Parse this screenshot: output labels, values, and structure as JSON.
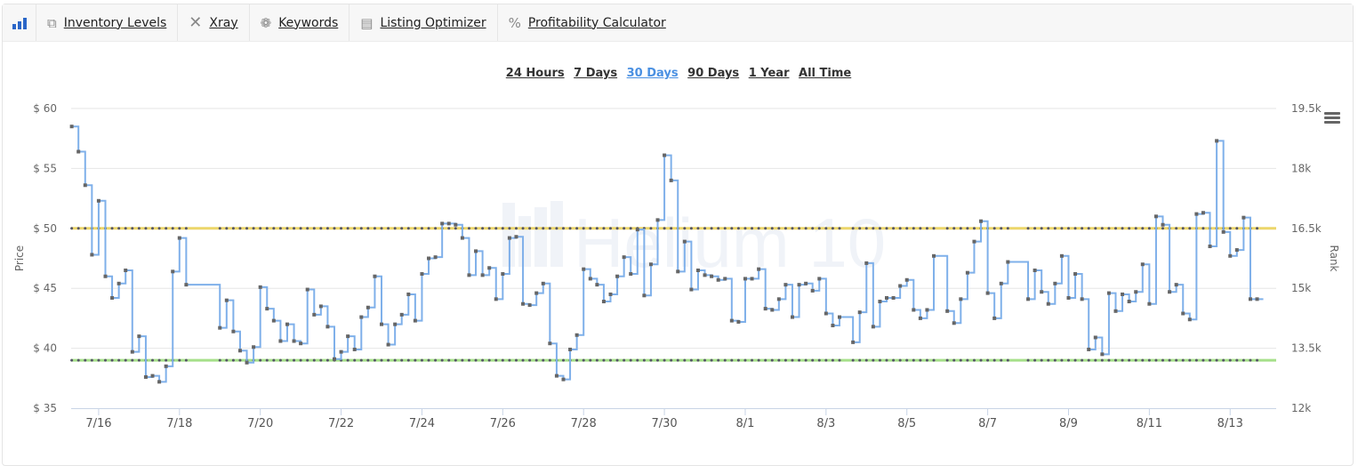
{
  "toolbar": {
    "items": [
      {
        "label": "Inventory Levels",
        "icon": "copy-icon"
      },
      {
        "label": "Xray",
        "icon": "x-icon"
      },
      {
        "label": "Keywords",
        "icon": "brain-icon"
      },
      {
        "label": "Listing Optimizer",
        "icon": "document-icon"
      },
      {
        "label": "Profitability Calculator",
        "icon": "percent-icon"
      }
    ],
    "logo_icon": "bar-chart-icon"
  },
  "ranges": [
    "24 Hours",
    "7 Days",
    "30 Days",
    "90 Days",
    "1 Year",
    "All Time"
  ],
  "active_range": "30 Days",
  "watermark": "Helium 10",
  "colors": {
    "price_line": "#7fb0ea",
    "upper_ref": "#ecd66a",
    "lower_ref": "#a6e08a",
    "marker": "#666666",
    "active_range": "#4a90e2"
  },
  "chart_data": {
    "type": "line",
    "step": true,
    "ylabel": "Price",
    "y2label": "Rank",
    "ylim": [
      35,
      60
    ],
    "y2lim": [
      12000,
      19500
    ],
    "yticks": [
      "$ 60",
      "$ 55",
      "$ 50",
      "$ 45",
      "$ 40",
      "$ 35"
    ],
    "y2ticks": [
      "19.5k",
      "18k",
      "16.5k",
      "15k",
      "13.5k",
      "12k"
    ],
    "xticks": [
      "7/16",
      "7/18",
      "7/20",
      "7/22",
      "7/24",
      "7/26",
      "7/28",
      "7/30",
      "8/1",
      "8/3",
      "8/5",
      "8/7",
      "8/9",
      "8/11",
      "8/13"
    ],
    "xlim": [
      "7/15 07:40",
      "8/14 03:20"
    ],
    "grid": true,
    "reference_lines": [
      {
        "value": 50,
        "color": "#ecd66a"
      },
      {
        "value": 39,
        "color": "#a6e08a"
      }
    ],
    "series": [
      {
        "points": [
          [
            "7/15 08:00",
            58.5
          ],
          [
            "7/15 12:00",
            56.4
          ],
          [
            "7/15 16:00",
            53.6
          ],
          [
            "7/15 20:00",
            47.8
          ],
          [
            "7/16 00:00",
            52.3
          ],
          [
            "7/16 04:00",
            46.0
          ],
          [
            "7/16 08:00",
            44.2
          ],
          [
            "7/16 12:00",
            45.4
          ],
          [
            "7/16 16:00",
            46.5
          ],
          [
            "7/16 20:00",
            39.7
          ],
          [
            "7/17 00:00",
            41.0
          ],
          [
            "7/17 04:00",
            37.6
          ],
          [
            "7/17 08:00",
            37.7
          ],
          [
            "7/17 12:00",
            37.2
          ],
          [
            "7/17 16:00",
            38.5
          ],
          [
            "7/17 20:00",
            46.4
          ],
          [
            "7/18 00:00",
            49.2
          ],
          [
            "7/18 04:00",
            45.3
          ],
          [
            "7/19 00:00",
            41.7
          ],
          [
            "7/19 04:00",
            44.0
          ],
          [
            "7/19 08:00",
            41.4
          ],
          [
            "7/19 12:00",
            39.8
          ],
          [
            "7/19 16:00",
            38.8
          ],
          [
            "7/19 20:00",
            40.1
          ],
          [
            "7/20 00:00",
            45.1
          ],
          [
            "7/20 04:00",
            43.3
          ],
          [
            "7/20 08:00",
            42.3
          ],
          [
            "7/20 12:00",
            40.6
          ],
          [
            "7/20 16:00",
            42.0
          ],
          [
            "7/20 20:00",
            40.6
          ],
          [
            "7/21 00:00",
            40.4
          ],
          [
            "7/21 04:00",
            44.9
          ],
          [
            "7/21 08:00",
            42.8
          ],
          [
            "7/21 12:00",
            43.5
          ],
          [
            "7/21 16:00",
            41.8
          ],
          [
            "7/21 20:00",
            39.1
          ],
          [
            "7/22 00:00",
            39.7
          ],
          [
            "7/22 04:00",
            41.0
          ],
          [
            "7/22 08:00",
            39.9
          ],
          [
            "7/22 12:00",
            42.6
          ],
          [
            "7/22 16:00",
            43.4
          ],
          [
            "7/22 20:00",
            46.0
          ],
          [
            "7/23 00:00",
            42.0
          ],
          [
            "7/23 04:00",
            40.3
          ],
          [
            "7/23 08:00",
            42.0
          ],
          [
            "7/23 12:00",
            42.8
          ],
          [
            "7/23 16:00",
            44.5
          ],
          [
            "7/23 20:00",
            42.3
          ],
          [
            "7/24 00:00",
            46.2
          ],
          [
            "7/24 04:00",
            47.5
          ],
          [
            "7/24 08:00",
            47.6
          ],
          [
            "7/24 12:00",
            50.4
          ],
          [
            "7/24 16:00",
            50.4
          ],
          [
            "7/24 20:00",
            50.3
          ],
          [
            "7/25 00:00",
            49.2
          ],
          [
            "7/25 04:00",
            46.1
          ],
          [
            "7/25 08:00",
            48.1
          ],
          [
            "7/25 12:00",
            46.1
          ],
          [
            "7/25 16:00",
            46.7
          ],
          [
            "7/25 20:00",
            44.1
          ],
          [
            "7/26 00:00",
            46.2
          ],
          [
            "7/26 04:00",
            49.2
          ],
          [
            "7/26 08:00",
            49.3
          ],
          [
            "7/26 12:00",
            43.7
          ],
          [
            "7/26 16:00",
            43.6
          ],
          [
            "7/26 20:00",
            44.6
          ],
          [
            "7/27 00:00",
            45.4
          ],
          [
            "7/27 04:00",
            40.4
          ],
          [
            "7/27 08:00",
            37.7
          ],
          [
            "7/27 12:00",
            37.4
          ],
          [
            "7/27 16:00",
            39.9
          ],
          [
            "7/27 20:00",
            41.1
          ],
          [
            "7/28 00:00",
            46.6
          ],
          [
            "7/28 04:00",
            45.8
          ],
          [
            "7/28 08:00",
            45.3
          ],
          [
            "7/28 12:00",
            43.9
          ],
          [
            "7/28 16:00",
            44.5
          ],
          [
            "7/28 20:00",
            46.0
          ],
          [
            "7/29 00:00",
            47.6
          ],
          [
            "7/29 04:00",
            46.2
          ],
          [
            "7/29 08:00",
            49.9
          ],
          [
            "7/29 12:00",
            44.4
          ],
          [
            "7/29 16:00",
            47.0
          ],
          [
            "7/29 20:00",
            50.7
          ],
          [
            "7/30 00:00",
            56.1
          ],
          [
            "7/30 04:00",
            54.0
          ],
          [
            "7/30 08:00",
            46.4
          ],
          [
            "7/30 12:00",
            48.9
          ],
          [
            "7/30 16:00",
            44.9
          ],
          [
            "7/30 20:00",
            46.5
          ],
          [
            "7/31 00:00",
            46.1
          ],
          [
            "7/31 04:00",
            46.0
          ],
          [
            "7/31 08:00",
            45.7
          ],
          [
            "7/31 12:00",
            45.8
          ],
          [
            "7/31 16:00",
            42.3
          ],
          [
            "7/31 20:00",
            42.2
          ],
          [
            "8/1 00:00",
            45.8
          ],
          [
            "8/1 04:00",
            45.8
          ],
          [
            "8/1 08:00",
            46.6
          ],
          [
            "8/1 12:00",
            43.3
          ],
          [
            "8/1 16:00",
            43.2
          ],
          [
            "8/1 20:00",
            44.1
          ],
          [
            "8/2 00:00",
            45.3
          ],
          [
            "8/2 04:00",
            42.6
          ],
          [
            "8/2 08:00",
            45.3
          ],
          [
            "8/2 12:00",
            45.4
          ],
          [
            "8/2 16:00",
            44.8
          ],
          [
            "8/2 20:00",
            45.8
          ],
          [
            "8/3 00:00",
            42.9
          ],
          [
            "8/3 04:00",
            41.9
          ],
          [
            "8/3 08:00",
            42.6
          ],
          [
            "8/3 16:00",
            40.5
          ],
          [
            "8/3 20:00",
            43.0
          ],
          [
            "8/4 00:00",
            47.1
          ],
          [
            "8/4 04:00",
            41.8
          ],
          [
            "8/4 08:00",
            43.9
          ],
          [
            "8/4 12:00",
            44.2
          ],
          [
            "8/4 16:00",
            44.2
          ],
          [
            "8/4 20:00",
            45.2
          ],
          [
            "8/5 00:00",
            45.7
          ],
          [
            "8/5 04:00",
            43.2
          ],
          [
            "8/5 08:00",
            42.5
          ],
          [
            "8/5 12:00",
            43.2
          ],
          [
            "8/5 16:00",
            47.7
          ],
          [
            "8/6 00:00",
            43.1
          ],
          [
            "8/6 04:00",
            42.1
          ],
          [
            "8/6 08:00",
            44.1
          ],
          [
            "8/6 12:00",
            46.3
          ],
          [
            "8/6 16:00",
            48.9
          ],
          [
            "8/6 20:00",
            50.6
          ],
          [
            "8/7 00:00",
            44.6
          ],
          [
            "8/7 04:00",
            42.5
          ],
          [
            "8/7 08:00",
            45.4
          ],
          [
            "8/7 12:00",
            47.2
          ],
          [
            "8/8 00:00",
            44.1
          ],
          [
            "8/8 04:00",
            46.5
          ],
          [
            "8/8 08:00",
            44.7
          ],
          [
            "8/8 12:00",
            43.7
          ],
          [
            "8/8 16:00",
            45.4
          ],
          [
            "8/8 20:00",
            47.7
          ],
          [
            "8/9 00:00",
            44.2
          ],
          [
            "8/9 04:00",
            46.2
          ],
          [
            "8/9 08:00",
            44.1
          ],
          [
            "8/9 12:00",
            39.9
          ],
          [
            "8/9 16:00",
            40.9
          ],
          [
            "8/9 20:00",
            39.5
          ],
          [
            "8/10 00:00",
            44.6
          ],
          [
            "8/10 04:00",
            43.1
          ],
          [
            "8/10 08:00",
            44.5
          ],
          [
            "8/10 12:00",
            43.9
          ],
          [
            "8/10 16:00",
            44.7
          ],
          [
            "8/10 20:00",
            47.0
          ],
          [
            "8/11 00:00",
            43.7
          ],
          [
            "8/11 04:00",
            51.0
          ],
          [
            "8/11 08:00",
            50.3
          ],
          [
            "8/11 12:00",
            44.7
          ],
          [
            "8/11 16:00",
            45.3
          ],
          [
            "8/11 20:00",
            42.9
          ],
          [
            "8/12 00:00",
            42.4
          ],
          [
            "8/12 04:00",
            51.2
          ],
          [
            "8/12 08:00",
            51.3
          ],
          [
            "8/12 12:00",
            48.5
          ],
          [
            "8/12 16:00",
            57.3
          ],
          [
            "8/12 20:00",
            49.7
          ],
          [
            "8/13 00:00",
            47.7
          ],
          [
            "8/13 04:00",
            48.2
          ],
          [
            "8/13 08:00",
            50.9
          ],
          [
            "8/13 12:00",
            44.1
          ],
          [
            "8/13 16:00",
            44.1
          ]
        ]
      }
    ]
  }
}
